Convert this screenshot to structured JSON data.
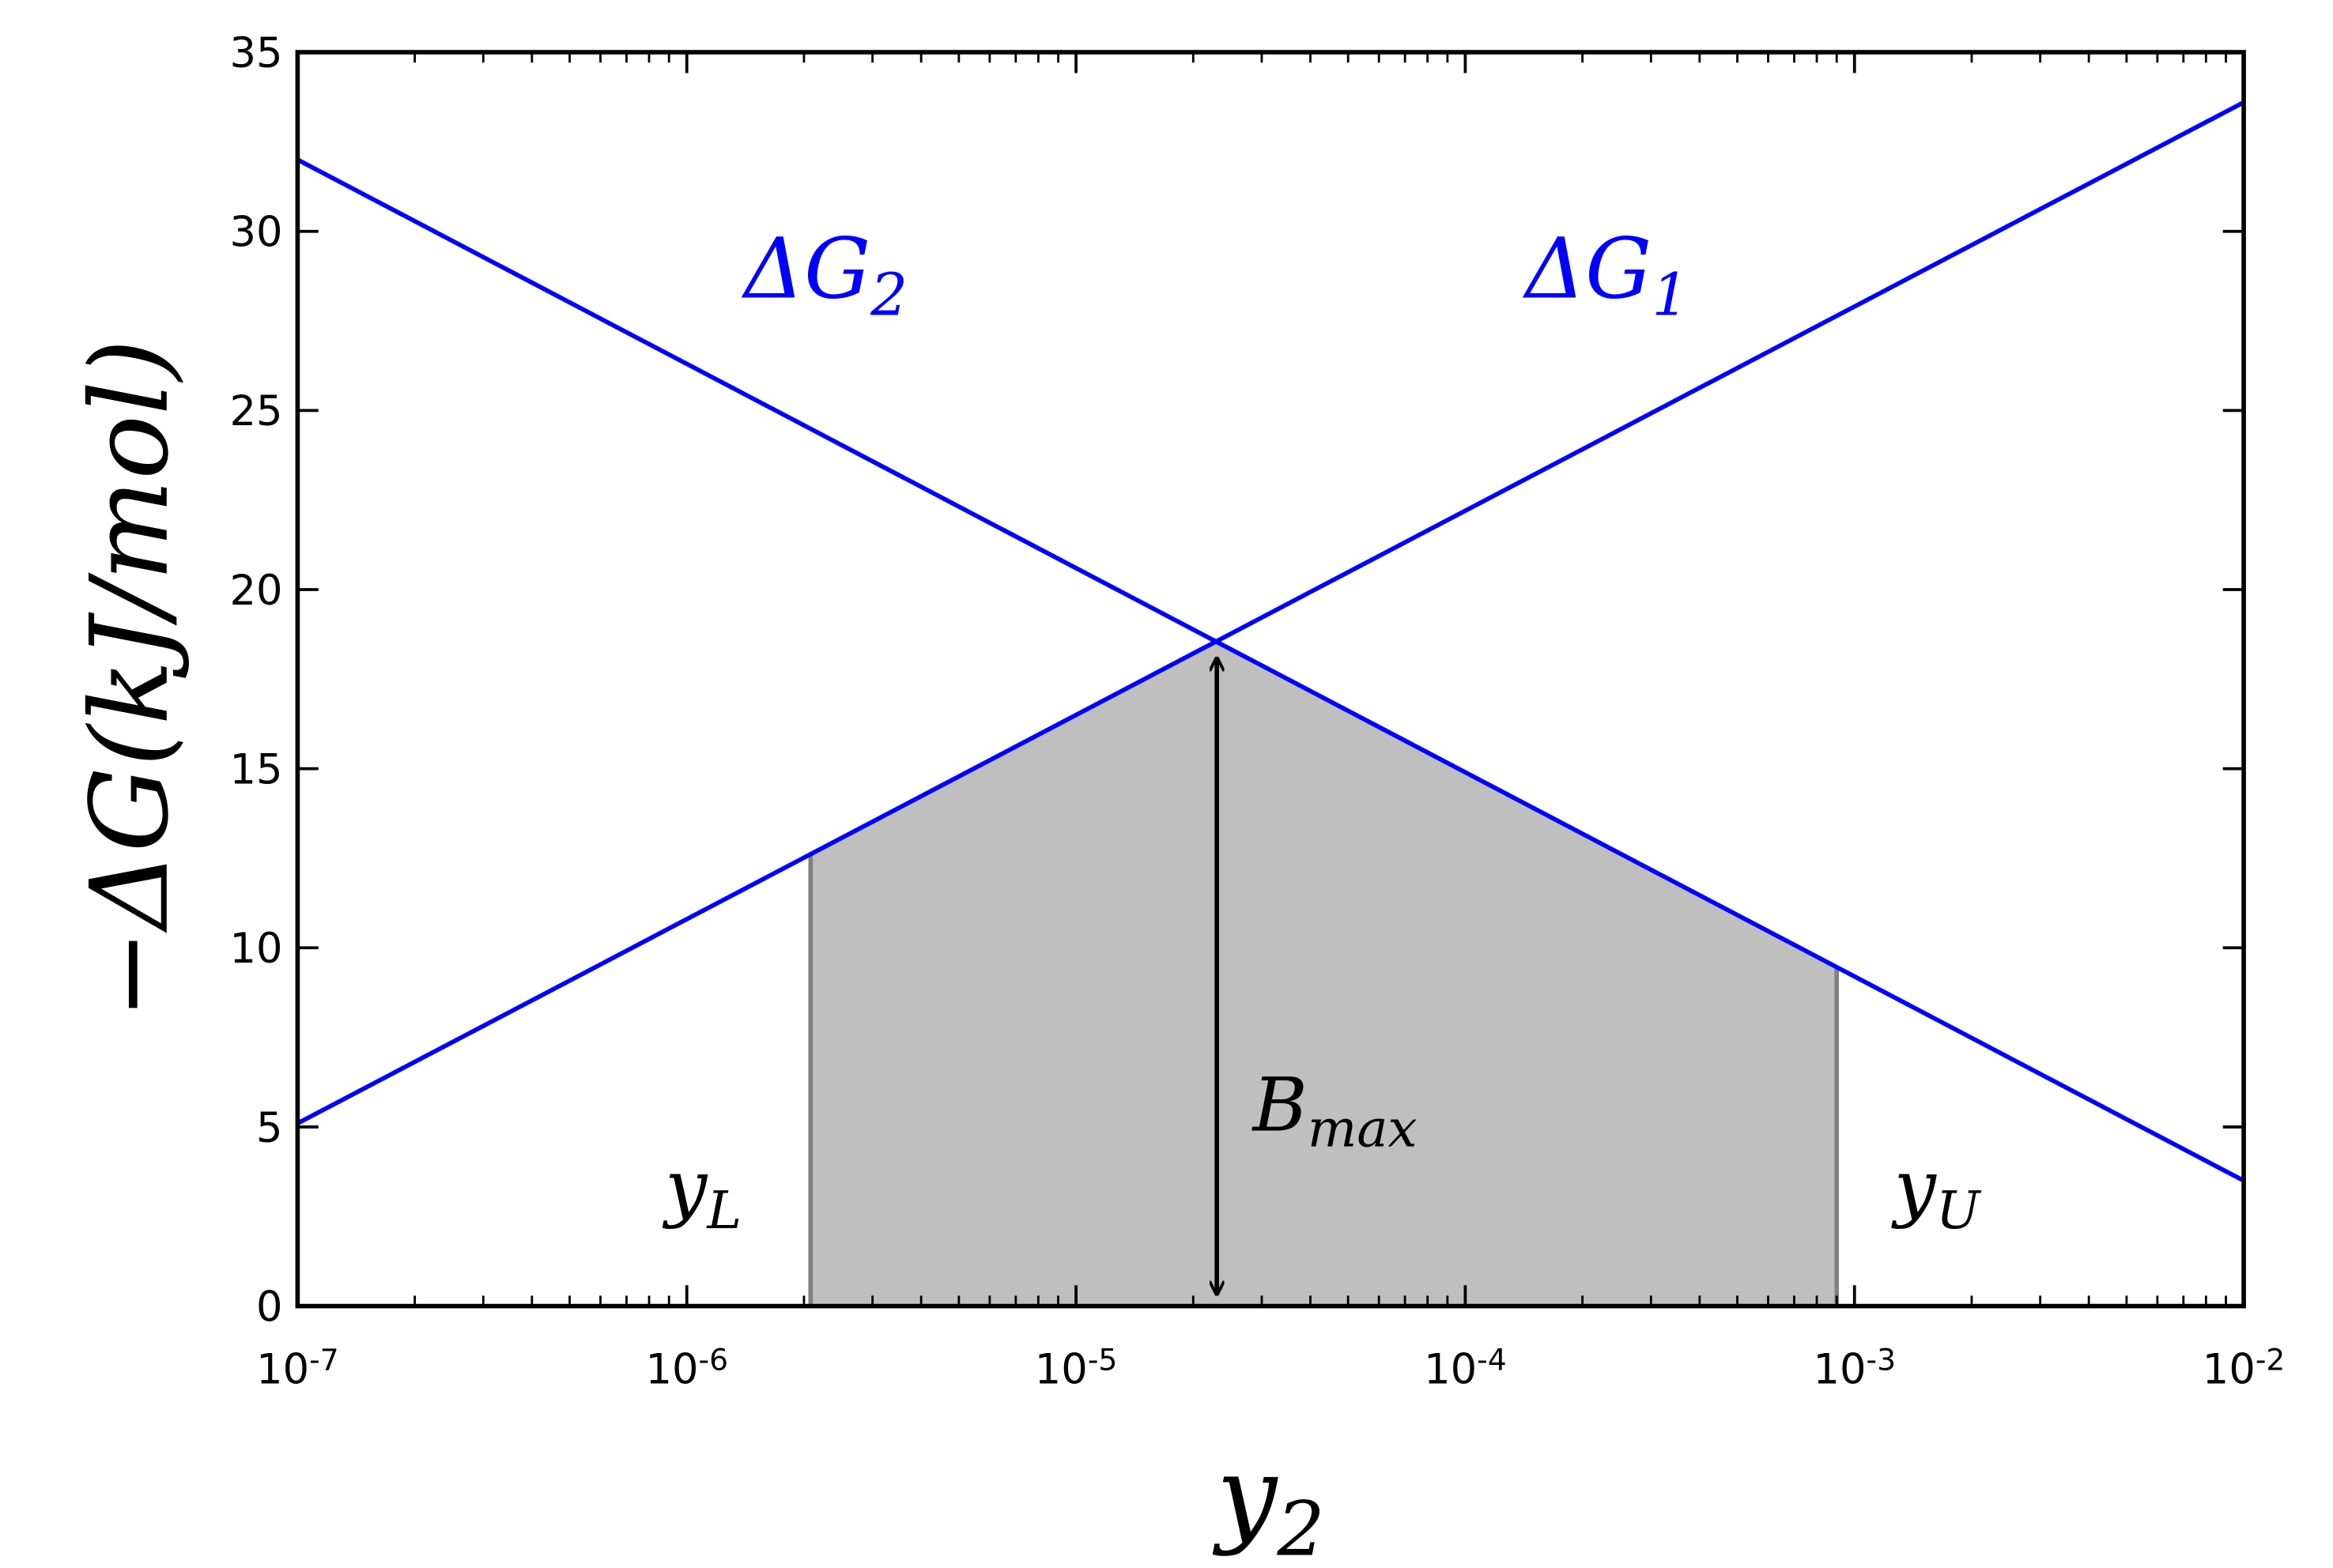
{
  "chart_data": {
    "type": "line",
    "xlabel": {
      "text": "y",
      "sub": "2"
    },
    "ylabel": "−ΔG(kJ/mol)",
    "xscale": "log",
    "xlim": [
      1e-07,
      0.01
    ],
    "xticks": [
      {
        "value": 1e-07,
        "label": "10",
        "exponent": "-7"
      },
      {
        "value": 1e-06,
        "label": "10",
        "exponent": "-6"
      },
      {
        "value": 1e-05,
        "label": "10",
        "exponent": "-5"
      },
      {
        "value": 0.0001,
        "label": "10",
        "exponent": "-4"
      },
      {
        "value": 0.001,
        "label": "10",
        "exponent": "-3"
      },
      {
        "value": 0.01,
        "label": "10",
        "exponent": "-2"
      }
    ],
    "ylim": [
      0,
      35
    ],
    "yticks": [
      0,
      5,
      10,
      15,
      20,
      25,
      30,
      35
    ],
    "series": [
      {
        "name": {
          "text": "ΔG",
          "sub": "1"
        },
        "color": "#0000ff",
        "x": [
          1e-07,
          0.01
        ],
        "values": [
          5.1,
          33.6
        ]
      },
      {
        "name": {
          "text": "ΔG",
          "sub": "2"
        },
        "color": "#0000ff",
        "x": [
          1e-07,
          0.01
        ],
        "values": [
          32,
          3.5
        ]
      }
    ],
    "fill_between": {
      "color": "#bfbfbf",
      "edge_color": "#808080",
      "x": [
        2.08e-06,
        2.3e-05,
        0.0009
      ],
      "values": [
        12.6,
        18.5,
        9.5
      ]
    },
    "arrow": {
      "label": {
        "text": "B",
        "sub": "max"
      },
      "x": 2.3e-05,
      "value": 18.5
    },
    "annotations": [
      {
        "text": "y",
        "sub": "L"
      },
      {
        "text": "y",
        "sub": "U"
      }
    ]
  }
}
